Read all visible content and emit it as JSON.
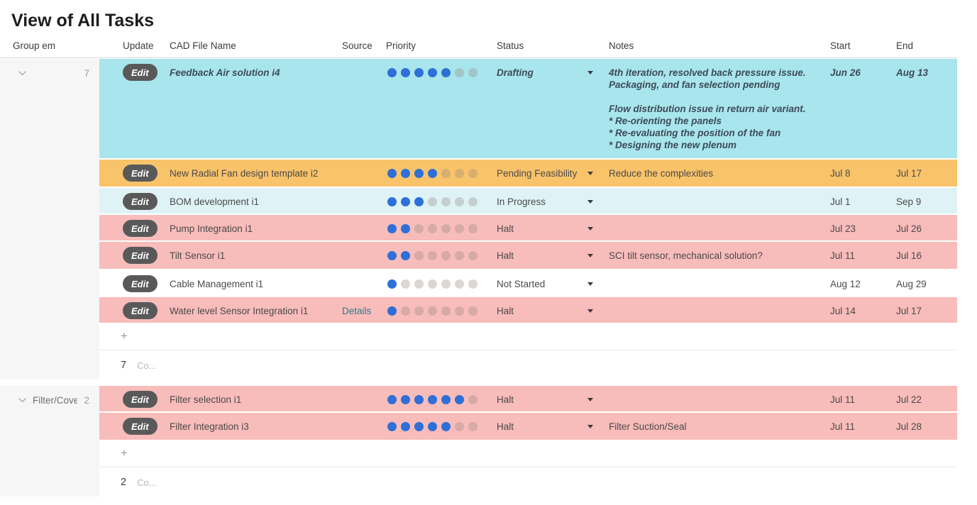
{
  "title": "View of All Tasks",
  "columns": {
    "group": "Group em",
    "update": "Update",
    "cad_file_name": "CAD File Name",
    "source": "Source",
    "priority": "Priority",
    "status": "Status",
    "notes": "Notes",
    "start": "Start",
    "end": "End"
  },
  "labels": {
    "edit": "Edit",
    "add_row": "+",
    "count_abbrev": "Co...",
    "priority_max": 7
  },
  "colors": {
    "row_cyan": "#a8e5ec",
    "row_orange": "#f9c36a",
    "row_lightblue": "#dff3f6",
    "row_pink": "#f8bcba",
    "row_white": "#ffffff",
    "dot_filled": "#2e6fd8",
    "edit_button_bg": "#595959",
    "details_link": "#2e7d8c",
    "group_column_bg": "#f6f6f6"
  },
  "groups": [
    {
      "name": "",
      "count": "7",
      "footer_count": "7",
      "rows": [
        {
          "cad_file_name": "Feedback Air solution i4",
          "source_link": "",
          "priority": 5,
          "status": "Drafting",
          "notes": "4th iteration, resolved back pressure issue.\nPackaging, and fan selection pending\n\nFlow distribution issue in return air variant.\n  * Re-orienting the panels\n  * Re-evaluating the position of the fan\n  * Designing the new plenum",
          "start": "Jun 26",
          "end": "Aug 13",
          "row_color": "row_cyan",
          "emphasis": true
        },
        {
          "cad_file_name": "New Radial Fan design template i2",
          "source_link": "",
          "priority": 4,
          "status": "Pending Feasibility",
          "notes": "Reduce the complexities",
          "start": "Jul 8",
          "end": "Jul 17",
          "row_color": "row_orange",
          "emphasis": false
        },
        {
          "cad_file_name": "BOM development i1",
          "source_link": "",
          "priority": 3,
          "status": "In Progress",
          "notes": "",
          "start": "Jul 1",
          "end": "Sep 9",
          "row_color": "row_lightblue",
          "emphasis": false
        },
        {
          "cad_file_name": "Pump Integration i1",
          "source_link": "",
          "priority": 2,
          "status": "Halt",
          "notes": "",
          "start": "Jul 23",
          "end": "Jul 26",
          "row_color": "row_pink",
          "emphasis": false
        },
        {
          "cad_file_name": "Tilt Sensor i1",
          "source_link": "",
          "priority": 2,
          "status": "Halt",
          "notes": "SCI tilt sensor, mechanical solution?",
          "start": "Jul 11",
          "end": "Jul 16",
          "row_color": "row_pink",
          "emphasis": false
        },
        {
          "cad_file_name": "Cable Management i1",
          "source_link": "",
          "priority": 1,
          "status": "Not Started",
          "notes": "",
          "start": "Aug 12",
          "end": "Aug 29",
          "row_color": "row_white",
          "emphasis": false
        },
        {
          "cad_file_name": "Water level Sensor Integration i1",
          "source_link": "Details",
          "priority": 1,
          "status": "Halt",
          "notes": "",
          "start": "Jul 14",
          "end": "Jul 17",
          "row_color": "row_pink",
          "emphasis": false
        }
      ]
    },
    {
      "name": "Filter/Cover",
      "count": "2",
      "footer_count": "2",
      "rows": [
        {
          "cad_file_name": "Filter selection i1",
          "source_link": "",
          "priority": 6,
          "status": "Halt",
          "notes": "",
          "start": "Jul 11",
          "end": "Jul 22",
          "row_color": "row_pink",
          "emphasis": false
        },
        {
          "cad_file_name": "Filter Integration i3",
          "source_link": "",
          "priority": 5,
          "status": "Halt",
          "notes": "Filter Suction/Seal",
          "start": "Jul 11",
          "end": "Jul 28",
          "row_color": "row_pink",
          "emphasis": false
        }
      ]
    }
  ]
}
